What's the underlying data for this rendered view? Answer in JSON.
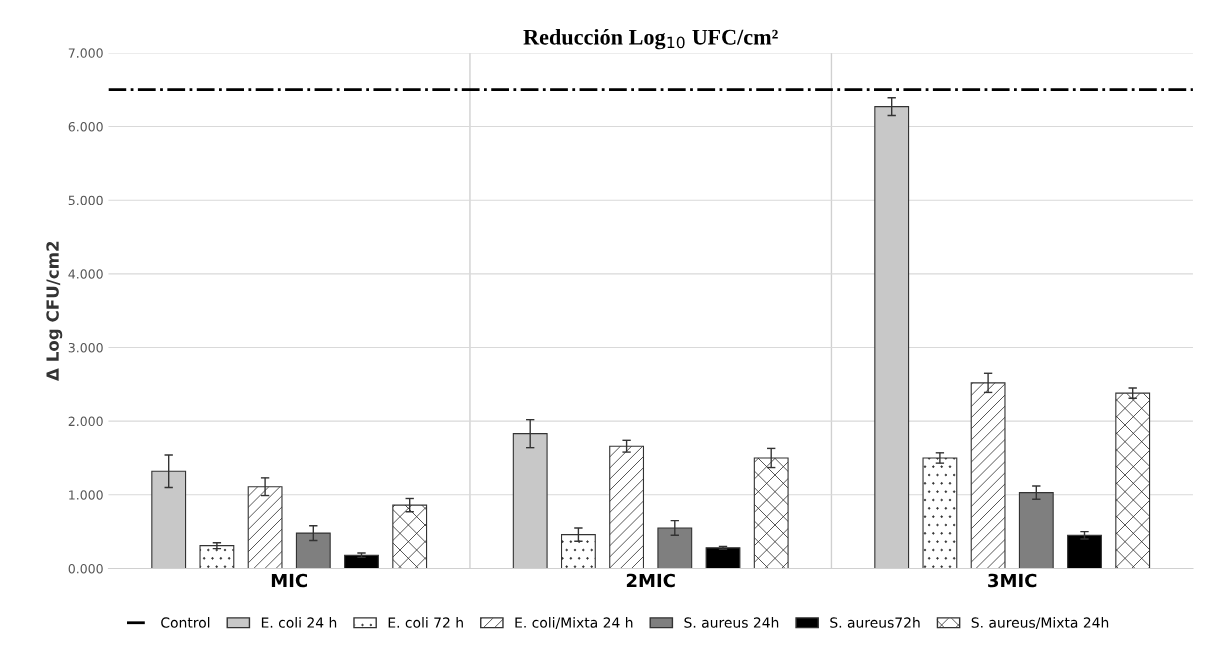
{
  "chart_data": {
    "type": "bar",
    "title": "Reducción Log$_{10}$ UFC/cm²",
    "ylabel": "Δ Log CFU/cm2",
    "categories": [
      "MIC",
      "2MIC",
      "3MIC"
    ],
    "series": [
      {
        "name": "E. coli 24 h",
        "color": "#c8c8c8",
        "values": [
          1.32,
          1.83,
          6.27
        ],
        "errors": [
          0.22,
          0.19,
          0.12
        ]
      },
      {
        "name": "E. coli 72 h",
        "color": "#ffffff",
        "values": [
          0.31,
          0.46,
          1.5
        ],
        "errors": [
          0.04,
          0.09,
          0.07
        ]
      },
      {
        "name": "E. coli/Mixta 24 h",
        "color": "#ffffff",
        "values": [
          1.11,
          1.66,
          2.52
        ],
        "errors": [
          0.12,
          0.08,
          0.13
        ]
      },
      {
        "name": "S. aureus 24h",
        "color": "#7f7f7f",
        "values": [
          0.48,
          0.55,
          1.03
        ],
        "errors": [
          0.1,
          0.1,
          0.09
        ]
      },
      {
        "name": "S. aureus72h",
        "color": "#000000",
        "values": [
          0.18,
          0.28,
          0.45
        ],
        "errors": [
          0.03,
          0.02,
          0.05
        ]
      },
      {
        "name": "S. aureus/Mixta 24h",
        "color": "#ffffff",
        "values": [
          0.86,
          1.5,
          2.38
        ],
        "errors": [
          0.09,
          0.13,
          0.07
        ]
      }
    ],
    "ref_lines": [
      {
        "axis": "y",
        "value": 6.5,
        "label": "Control",
        "color": "#000000",
        "line_style": "dashdot"
      }
    ],
    "ylim": [
      0,
      7
    ],
    "yticks": [
      {
        "value": 0,
        "label": "0.000"
      },
      {
        "value": 1,
        "label": "1.000"
      },
      {
        "value": 2,
        "label": "2.000"
      },
      {
        "value": 3,
        "label": "3.000"
      },
      {
        "value": 4,
        "label": "4.000"
      },
      {
        "value": 5,
        "label": "5.000"
      },
      {
        "value": 6,
        "label": "6.000"
      },
      {
        "value": 7,
        "label": "7.000"
      }
    ],
    "grid": "y",
    "legend": "bottom"
  }
}
